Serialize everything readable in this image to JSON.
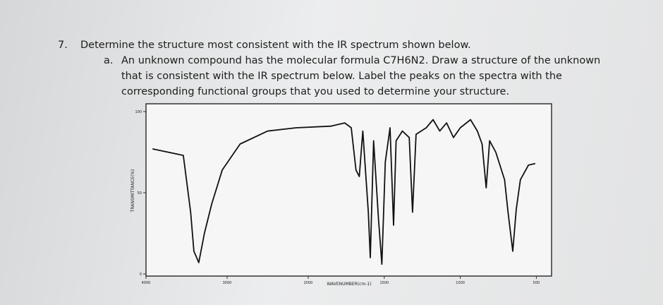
{
  "question": {
    "number": "7.",
    "text": "Determine the structure most consistent with the IR spectrum shown below.",
    "part": {
      "label": "a.",
      "lines": [
        "An unknown compound has the molecular formula C7H6N2. Draw a structure of the unknown",
        "that is consistent with the IR spectrum below. Label the peaks on the spectra with the",
        "corresponding functional groups that you used to determine your structure."
      ]
    }
  },
  "chart_data": {
    "type": "line",
    "x_label": "WAVENUMBER(cm-1)",
    "y_label": "TRANSMITTANCE(%)",
    "xlim": [
      4000,
      400
    ],
    "ylim": [
      0,
      100
    ],
    "xticks": [
      4000,
      3000,
      2000,
      1500,
      1000,
      500
    ],
    "yticks": [
      0,
      50,
      100
    ],
    "series": [
      {
        "name": "spectrum",
        "color": "#111111",
        "x": [
          3920,
          3540,
          3450,
          3410,
          3350,
          3280,
          3190,
          3060,
          2840,
          2500,
          2150,
          1852,
          1760,
          1717,
          1686,
          1664,
          1641,
          1605,
          1592,
          1570,
          1538,
          1516,
          1493,
          1462,
          1439,
          1422,
          1381,
          1336,
          1314,
          1291,
          1224,
          1179,
          1135,
          1090,
          1045,
          1000,
          933,
          888,
          857,
          830,
          807,
          767,
          709,
          686,
          655,
          632,
          605,
          552,
          507
        ],
        "values": [
          77,
          73,
          38,
          14,
          7,
          25,
          43,
          64,
          80,
          88,
          90,
          91,
          93,
          90,
          64,
          60,
          88,
          38,
          10,
          82,
          34,
          6,
          69,
          90,
          30,
          82,
          88,
          84,
          38,
          86,
          90,
          95,
          88,
          93,
          84,
          90,
          95,
          88,
          80,
          53,
          82,
          75,
          58,
          38,
          14,
          40,
          58,
          67,
          68
        ]
      }
    ]
  }
}
